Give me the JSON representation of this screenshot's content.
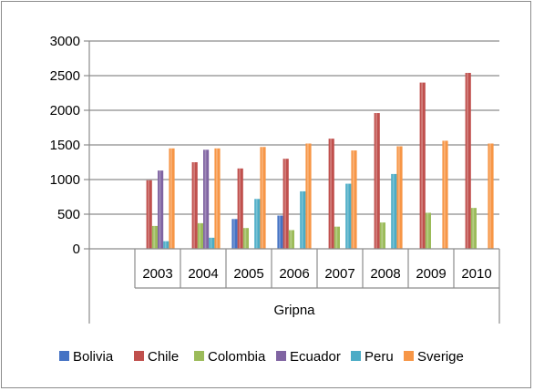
{
  "chart_data": {
    "type": "bar",
    "title": "",
    "xlabel": "",
    "ylabel": "",
    "group_label": "Gripna",
    "categories": [
      "",
      "2003",
      "2004",
      "2005",
      "2006",
      "2007",
      "2008",
      "2009",
      "2010"
    ],
    "ylim": [
      0,
      3000
    ],
    "yticks": [
      0,
      500,
      1000,
      1500,
      2000,
      2500,
      3000
    ],
    "grid": true,
    "legend_position": "bottom",
    "series": [
      {
        "name": "Bolivia",
        "color": "#4472c4",
        "values": [
          null,
          null,
          null,
          430,
          480,
          null,
          null,
          null,
          null
        ]
      },
      {
        "name": "Chile",
        "color": "#c0504d",
        "values": [
          null,
          990,
          1250,
          1160,
          1300,
          1590,
          1960,
          2400,
          2540
        ]
      },
      {
        "name": "Colombia",
        "color": "#9bbb59",
        "values": [
          null,
          330,
          370,
          300,
          270,
          320,
          380,
          520,
          590
        ]
      },
      {
        "name": "Ecuador",
        "color": "#8064a2",
        "values": [
          null,
          1130,
          1430,
          null,
          null,
          null,
          null,
          null,
          null
        ]
      },
      {
        "name": "Peru",
        "color": "#4bacc6",
        "values": [
          null,
          110,
          160,
          720,
          830,
          940,
          1080,
          null,
          null
        ]
      },
      {
        "name": "Sverige",
        "color": "#f79646",
        "values": [
          null,
          1450,
          1450,
          1470,
          1520,
          1420,
          1480,
          1560,
          1520
        ]
      }
    ]
  }
}
